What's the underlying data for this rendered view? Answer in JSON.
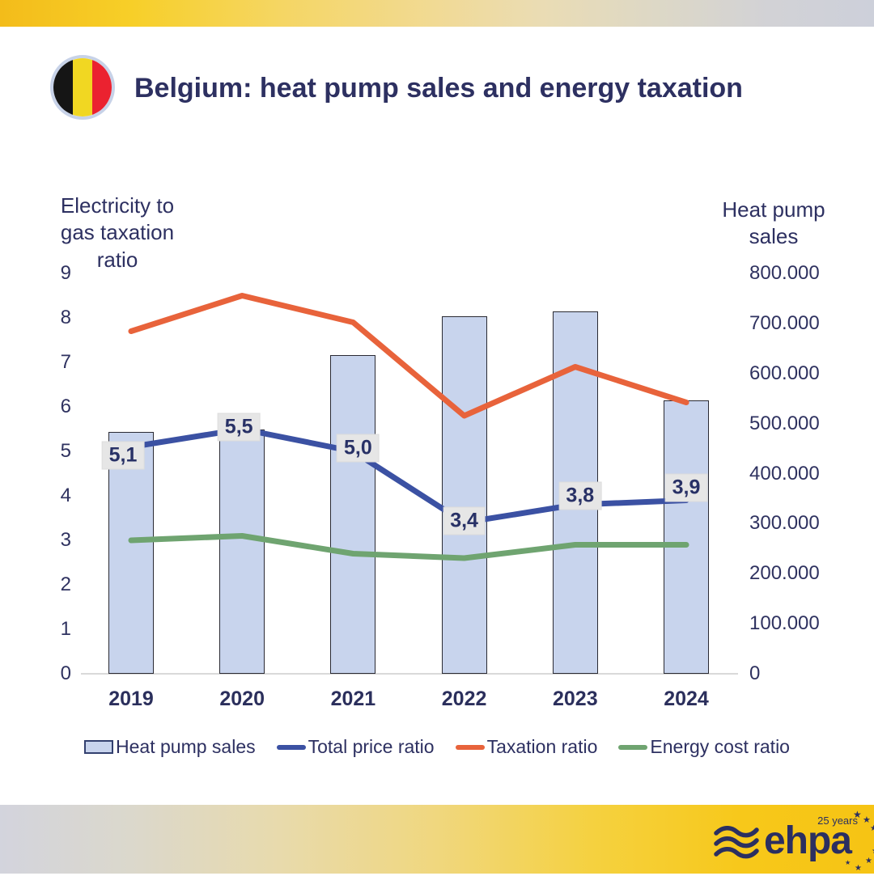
{
  "header": {
    "title": "Belgium: heat pump sales and energy taxation"
  },
  "flag": {
    "country": "Belgium",
    "colors": {
      "black": "#151515",
      "yellow": "#F1D722",
      "red": "#EB2230"
    }
  },
  "chart_data": {
    "type": "combo",
    "categories": [
      "2019",
      "2020",
      "2021",
      "2022",
      "2023",
      "2024"
    ],
    "series": [
      {
        "name": "Heat pump sales",
        "type": "bar",
        "axis": "right",
        "color": "#C8D4ED",
        "border_color": "#2A2A33",
        "values": [
          483000,
          488000,
          637000,
          715000,
          724000,
          547000
        ]
      },
      {
        "name": "Total price ratio",
        "type": "line",
        "axis": "left",
        "color": "#3B51A3",
        "values": [
          5.1,
          5.5,
          5.0,
          3.4,
          3.8,
          3.9
        ],
        "labels": [
          "5,1",
          "5,5",
          "5,0",
          "3,4",
          "3,8",
          "3,9"
        ]
      },
      {
        "name": "Taxation ratio",
        "type": "line",
        "axis": "left",
        "color": "#E8633B",
        "values": [
          7.7,
          8.5,
          7.9,
          5.8,
          6.9,
          6.1
        ]
      },
      {
        "name": "Energy cost ratio",
        "type": "line",
        "axis": "left",
        "color": "#6FA470",
        "values": [
          3.0,
          3.1,
          2.7,
          2.6,
          2.9,
          2.9
        ]
      }
    ],
    "left_axis": {
      "title": "Electricity to\ngas taxation\nratio",
      "ticks": [
        0,
        1,
        2,
        3,
        4,
        5,
        6,
        7,
        8,
        9
      ],
      "range": [
        0,
        9
      ]
    },
    "right_axis": {
      "title": "Heat pump\nsales",
      "tick_labels": [
        "0",
        "100.000",
        "200.000",
        "300.000",
        "400.000",
        "500.000",
        "600.000",
        "700.000",
        "800.000"
      ],
      "range": [
        0,
        800000
      ]
    },
    "legend_position": "bottom",
    "grid": false
  },
  "footer": {
    "logo": "ehpa",
    "anniversary": "25 years"
  },
  "palette": {
    "navy": "#2D3061",
    "gold": "#F6C414",
    "label_bg": "#E6E6E6",
    "axis_line": "#D9D9D9"
  }
}
